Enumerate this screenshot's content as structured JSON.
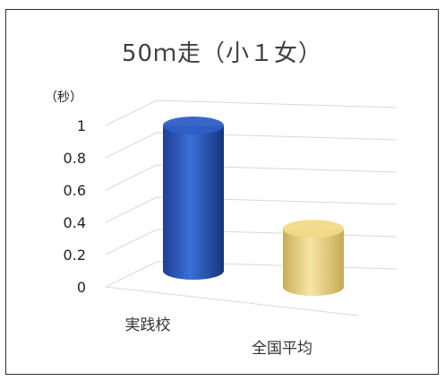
{
  "chart_data": {
    "type": "bar",
    "title": "50ｍ走（小１女）",
    "ylabel": "（秒）",
    "categories": [
      "実践校",
      "全国平均"
    ],
    "series": [
      {
        "values": [
          1.0,
          0.4
        ]
      }
    ],
    "bar_colors": [
      "#2f5fc4",
      "#f2d98a"
    ],
    "ylim": [
      0,
      1
    ],
    "y_ticks": [
      "0",
      "0.2",
      "0.4",
      "0.6",
      "0.8",
      "1"
    ],
    "grid": true,
    "legend": "none"
  }
}
